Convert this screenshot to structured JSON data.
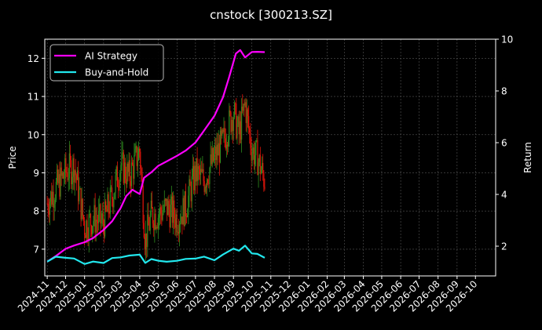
{
  "title": "cnstock [300213.SZ]",
  "chart_data": {
    "type": "line",
    "title": "cnstock [300213.SZ]",
    "ylabel_left": "Price",
    "ylabel_right": "Return",
    "ylim_left": [
      6.3,
      12.5
    ],
    "ylim_right": [
      0.85,
      10.0
    ],
    "y_ticks_left": [
      "7",
      "8",
      "9",
      "10",
      "11",
      "12"
    ],
    "y_ticks_right": [
      "2",
      "4",
      "6",
      "8",
      "10"
    ],
    "x_tick_labels": [
      "2024-11",
      "2024-12",
      "2025-01",
      "2025-02",
      "2025-03",
      "2025-04",
      "2025-05",
      "2025-06",
      "2025-07",
      "2025-08",
      "2025-09",
      "2025-10",
      "2025-11",
      "2025-12",
      "2026-01",
      "2026-02",
      "2026-03",
      "2026-04",
      "2026-05",
      "2026-06",
      "2026-07",
      "2026-08",
      "2026-09",
      "2026-10"
    ],
    "grid": true,
    "legend_position": "top-left",
    "up_color": "#2e8b1e",
    "down_color": "#e0150a",
    "series": [
      {
        "name": "AI Strategy",
        "axis": "right",
        "color": "#ff00ff",
        "x": [
          "2024-11-01",
          "2024-11-15",
          "2024-12-01",
          "2024-12-15",
          "2025-01-01",
          "2025-01-15",
          "2025-02-01",
          "2025-02-15",
          "2025-03-01",
          "2025-03-10",
          "2025-03-20",
          "2025-04-01",
          "2025-04-08",
          "2025-04-20",
          "2025-05-01",
          "2025-05-15",
          "2025-06-01",
          "2025-06-15",
          "2025-07-01",
          "2025-07-15",
          "2025-08-01",
          "2025-08-15",
          "2025-08-25",
          "2025-09-05",
          "2025-09-12",
          "2025-09-20",
          "2025-10-01",
          "2025-10-10",
          "2025-10-22"
        ],
        "values": [
          1.4,
          1.6,
          1.85,
          2.05,
          2.2,
          2.35,
          2.6,
          3.0,
          3.5,
          3.9,
          4.2,
          4.0,
          4.6,
          4.8,
          5.1,
          5.3,
          5.5,
          5.7,
          6.0,
          6.5,
          7.0,
          7.8,
          8.5,
          9.5,
          9.6,
          9.3,
          9.5,
          9.5,
          9.5
        ]
      },
      {
        "name": "Buy-and-Hold",
        "axis": "right",
        "color": "#22e8ee",
        "x": [
          "2024-11-01",
          "2024-11-15",
          "2024-12-01",
          "2024-12-15",
          "2025-01-01",
          "2025-01-15",
          "2025-02-01",
          "2025-02-15",
          "2025-03-01",
          "2025-03-15",
          "2025-04-01",
          "2025-04-10",
          "2025-04-20",
          "2025-05-01",
          "2025-05-15",
          "2025-06-01",
          "2025-06-15",
          "2025-07-01",
          "2025-07-15",
          "2025-08-01",
          "2025-08-15",
          "2025-09-01",
          "2025-09-10",
          "2025-09-20",
          "2025-10-01",
          "2025-10-10",
          "2025-10-22"
        ],
        "values": [
          1.4,
          1.55,
          1.6,
          1.55,
          1.35,
          1.35,
          1.4,
          1.5,
          1.55,
          1.6,
          1.7,
          1.35,
          1.45,
          1.4,
          1.45,
          1.4,
          1.45,
          1.5,
          1.55,
          1.5,
          1.65,
          1.9,
          1.8,
          2.0,
          1.75,
          1.75,
          1.55
        ]
      },
      {
        "name": "Price",
        "axis": "left",
        "type": "candlestick",
        "x": [
          "2024-11-01",
          "2024-11-15",
          "2024-12-01",
          "2024-12-15",
          "2025-01-01",
          "2025-01-15",
          "2025-02-01",
          "2025-02-15",
          "2025-03-01",
          "2025-03-15",
          "2025-04-01",
          "2025-04-10",
          "2025-04-20",
          "2025-05-01",
          "2025-05-15",
          "2025-06-01",
          "2025-06-15",
          "2025-07-01",
          "2025-07-15",
          "2025-08-01",
          "2025-08-15",
          "2025-09-01",
          "2025-09-10",
          "2025-09-20",
          "2025-10-01",
          "2025-10-10",
          "2025-10-22"
        ],
        "values": [
          8.2,
          8.6,
          9.0,
          9.2,
          7.6,
          7.8,
          7.7,
          8.4,
          9.2,
          8.9,
          9.6,
          7.2,
          7.9,
          7.9,
          8.1,
          7.8,
          8.1,
          9.0,
          8.8,
          9.4,
          9.8,
          10.6,
          10.0,
          10.8,
          9.6,
          9.4,
          8.8
        ]
      }
    ]
  }
}
